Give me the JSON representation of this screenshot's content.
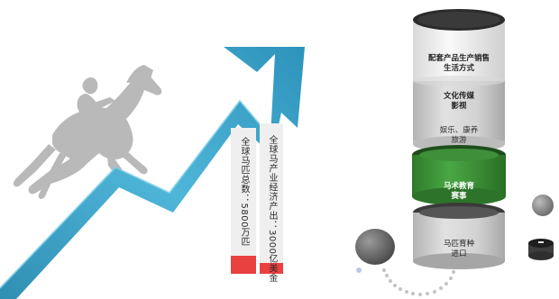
{
  "stats": {
    "horse_count": "全球马匹总数：5800万匹",
    "economic_output": "全球马产业经济产出：3000亿美金"
  },
  "cylinder_segments": [
    {
      "id": "s1",
      "label": "配套产品生产销售\n生活方式"
    },
    {
      "id": "s2",
      "label": "文化传媒\n影视"
    },
    {
      "id": "s3",
      "label": "娱乐、康养\n旅游"
    },
    {
      "id": "s4",
      "label": "马术教育\n赛事"
    },
    {
      "id": "s5",
      "label": "马匹育种\n进口"
    }
  ],
  "colors": {
    "arrow": "#3aa2c6",
    "arrow_dark": "#1f6f8e",
    "bar_red": "#e94040",
    "green": "#3f9a3a",
    "cylinder_gray": "#c9c9c9",
    "horse_gray": "#b8b8b8"
  },
  "icons": {
    "horse_rider": "show-jumping-horse-silhouette",
    "arrow": "rising-arrow",
    "ball": "gray-sphere"
  }
}
